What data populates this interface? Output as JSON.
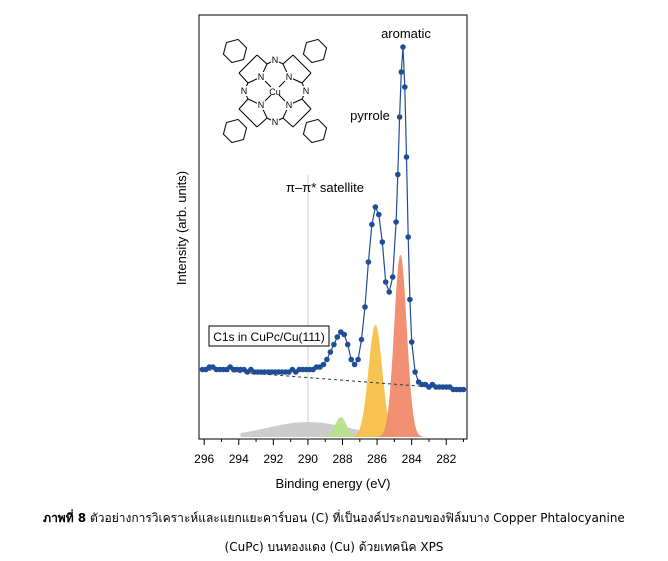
{
  "chart_data": {
    "type": "line",
    "title": "",
    "xlabel": "Binding energy (eV)",
    "ylabel": "Intensity (arb. units)",
    "xlim": [
      296.3,
      280.8
    ],
    "x_reversed": true,
    "xticks": [
      296,
      294,
      292,
      290,
      288,
      286,
      284,
      282
    ],
    "y_ticks_shown": false,
    "grid": false,
    "legend": "none",
    "box_label": "C1s in CuPc/Cu(111)",
    "annotations": [
      {
        "text": "aromatic",
        "x": 284.6
      },
      {
        "text": "pyrrole",
        "x": 285.9
      },
      {
        "text": "π–π* satellite",
        "x": 287.8
      }
    ],
    "molecule": {
      "metal_label": "Cu",
      "atom_label": "N"
    },
    "series": [
      {
        "kind": "measured_points",
        "color": "#1f4e96",
        "points": [
          [
            296.1,
            0.27
          ],
          [
            295.9,
            0.27
          ],
          [
            295.7,
            0.28
          ],
          [
            295.5,
            0.28
          ],
          [
            295.3,
            0.27
          ],
          [
            295.1,
            0.27
          ],
          [
            294.9,
            0.27
          ],
          [
            294.7,
            0.27
          ],
          [
            294.5,
            0.28
          ],
          [
            294.3,
            0.27
          ],
          [
            294.1,
            0.27
          ],
          [
            293.9,
            0.27
          ],
          [
            293.7,
            0.27
          ],
          [
            293.5,
            0.26
          ],
          [
            293.3,
            0.27
          ],
          [
            293.1,
            0.26
          ],
          [
            292.9,
            0.26
          ],
          [
            292.7,
            0.26
          ],
          [
            292.5,
            0.26
          ],
          [
            292.3,
            0.26
          ],
          [
            292.1,
            0.26
          ],
          [
            291.9,
            0.26
          ],
          [
            291.7,
            0.26
          ],
          [
            291.5,
            0.26
          ],
          [
            291.3,
            0.26
          ],
          [
            291.1,
            0.26
          ],
          [
            290.9,
            0.27
          ],
          [
            290.7,
            0.26
          ],
          [
            290.5,
            0.27
          ],
          [
            290.3,
            0.27
          ],
          [
            290.1,
            0.27
          ],
          [
            289.9,
            0.27
          ],
          [
            289.7,
            0.27
          ],
          [
            289.5,
            0.28
          ],
          [
            289.3,
            0.28
          ],
          [
            289.1,
            0.29
          ],
          [
            288.9,
            0.31
          ],
          [
            288.7,
            0.34
          ],
          [
            288.5,
            0.37
          ],
          [
            288.3,
            0.4
          ],
          [
            288.1,
            0.42
          ],
          [
            287.9,
            0.41
          ],
          [
            287.7,
            0.37
          ],
          [
            287.5,
            0.31
          ],
          [
            287.3,
            0.29
          ],
          [
            287.1,
            0.31
          ],
          [
            286.9,
            0.39
          ],
          [
            286.7,
            0.52
          ],
          [
            286.5,
            0.7
          ],
          [
            286.3,
            0.85
          ],
          [
            286.1,
            0.92
          ],
          [
            285.9,
            0.89
          ],
          [
            285.7,
            0.78
          ],
          [
            285.5,
            0.62
          ],
          [
            285.3,
            0.58
          ],
          [
            285.1,
            0.64
          ],
          [
            284.9,
            0.86
          ],
          [
            284.8,
            1.05
          ],
          [
            284.7,
            1.28
          ],
          [
            284.6,
            1.46
          ],
          [
            284.5,
            1.56
          ],
          [
            284.4,
            1.4
          ],
          [
            284.3,
            1.12
          ],
          [
            284.2,
            0.8
          ],
          [
            284.1,
            0.55
          ],
          [
            284.0,
            0.38
          ],
          [
            283.8,
            0.26
          ],
          [
            283.6,
            0.22
          ],
          [
            283.4,
            0.21
          ],
          [
            283.2,
            0.21
          ],
          [
            283.0,
            0.2
          ],
          [
            282.8,
            0.21
          ],
          [
            282.6,
            0.2
          ],
          [
            282.4,
            0.2
          ],
          [
            282.2,
            0.2
          ],
          [
            282.0,
            0.2
          ],
          [
            281.8,
            0.2
          ],
          [
            281.6,
            0.19
          ],
          [
            281.4,
            0.19
          ],
          [
            281.2,
            0.19
          ],
          [
            281.0,
            0.19
          ]
        ]
      },
      {
        "kind": "background",
        "style": "dashed",
        "color": "#333333",
        "points": [
          [
            296.1,
            0.27
          ],
          [
            281.0,
            0.19
          ]
        ]
      }
    ],
    "components": [
      {
        "center": 284.65,
        "height": 0.73,
        "width": 0.55,
        "color": "#f08a6b"
      },
      {
        "center": 286.1,
        "height": 0.45,
        "width": 0.6,
        "color": "#f7c14a"
      },
      {
        "center": 288.1,
        "height": 0.08,
        "width": 0.5,
        "color": "#b9de8c"
      },
      {
        "center": 290.0,
        "height": 0.06,
        "width": 3.6,
        "color": "#c9c9c9",
        "start": 293.9,
        "end": 286.0
      }
    ]
  },
  "caption": {
    "label": "ภาพที่ 8",
    "line1": "ตัวอย่างการวิเคราะห์และแยกแยะคาร์บอน (C) ที่เป็นองค์ประกอบของฟิล์มบาง Copper Phtalocyanine",
    "line2": "(CuPc) บนทองแดง (Cu) ด้วยเทคนิค XPS"
  }
}
